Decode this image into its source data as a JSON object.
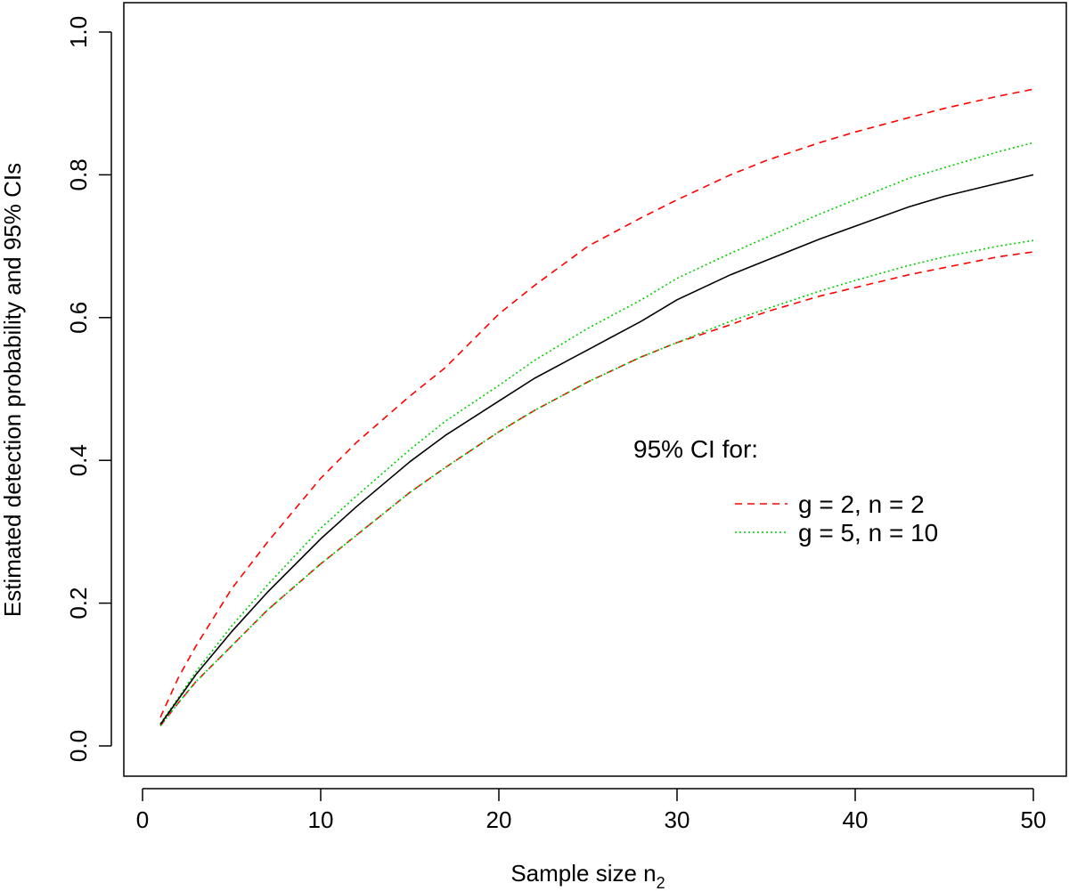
{
  "chart_data": {
    "type": "line",
    "xlabel": "Sample size n",
    "xlabel_subscript": "2",
    "ylabel": "Estimated detection probability and 95% CIs",
    "xlim": [
      0,
      50
    ],
    "ylim": [
      0,
      1
    ],
    "xticks": [
      0,
      10,
      20,
      30,
      40,
      50
    ],
    "xtick_labels": [
      "0",
      "10",
      "20",
      "30",
      "40",
      "50"
    ],
    "yticks": [
      0,
      0.2,
      0.4,
      0.6,
      0.8,
      1.0
    ],
    "ytick_labels": [
      "0.0",
      "0.2",
      "0.4",
      "0.6",
      "0.8",
      "1.0"
    ],
    "grid": false,
    "legend": {
      "title": "95% CI for:",
      "placement": "center-right",
      "entries": [
        {
          "label": "g = 2, n = 2",
          "color": "#ff0000",
          "dash": "dashed"
        },
        {
          "label": "g = 5, n = 10",
          "color": "#00cc00",
          "dash": "dotted"
        }
      ]
    },
    "x": [
      1,
      2,
      3,
      5,
      7,
      10,
      12,
      15,
      17,
      20,
      22,
      25,
      28,
      30,
      33,
      35,
      38,
      40,
      43,
      45,
      48,
      50
    ],
    "series": [
      {
        "name": "",
        "color": "#000000",
        "dash": "solid",
        "values": [
          0.03,
          0.065,
          0.1,
          0.16,
          0.215,
          0.29,
          0.335,
          0.398,
          0.435,
          0.483,
          0.515,
          0.555,
          0.595,
          0.625,
          0.66,
          0.68,
          0.71,
          0.728,
          0.755,
          0.77,
          0.788,
          0.8
        ]
      },
      {
        "name": "g = 2, n = 2",
        "color": "#ff0000",
        "dash": "dashed",
        "values": [
          0.04,
          0.095,
          0.14,
          0.22,
          0.285,
          0.375,
          0.425,
          0.49,
          0.53,
          0.605,
          0.645,
          0.7,
          0.74,
          0.765,
          0.8,
          0.82,
          0.845,
          0.86,
          0.88,
          0.893,
          0.91,
          0.92
        ]
      },
      {
        "name": "",
        "color": "#ff0000",
        "dash": "dashed",
        "values": [
          0.028,
          0.06,
          0.09,
          0.14,
          0.19,
          0.255,
          0.295,
          0.355,
          0.39,
          0.44,
          0.47,
          0.51,
          0.545,
          0.565,
          0.59,
          0.608,
          0.63,
          0.642,
          0.66,
          0.67,
          0.685,
          0.692
        ]
      },
      {
        "name": "g = 5, n = 10",
        "color": "#00cc00",
        "dash": "dotted",
        "values": [
          0.031,
          0.067,
          0.104,
          0.168,
          0.225,
          0.305,
          0.35,
          0.415,
          0.455,
          0.505,
          0.54,
          0.585,
          0.625,
          0.655,
          0.69,
          0.712,
          0.745,
          0.765,
          0.795,
          0.81,
          0.832,
          0.845
        ]
      },
      {
        "name": "",
        "color": "#00cc00",
        "dash": "dotted",
        "values": [
          0.028,
          0.06,
          0.09,
          0.14,
          0.19,
          0.255,
          0.295,
          0.355,
          0.39,
          0.44,
          0.47,
          0.51,
          0.545,
          0.565,
          0.595,
          0.612,
          0.637,
          0.652,
          0.673,
          0.685,
          0.7,
          0.708
        ]
      }
    ]
  }
}
